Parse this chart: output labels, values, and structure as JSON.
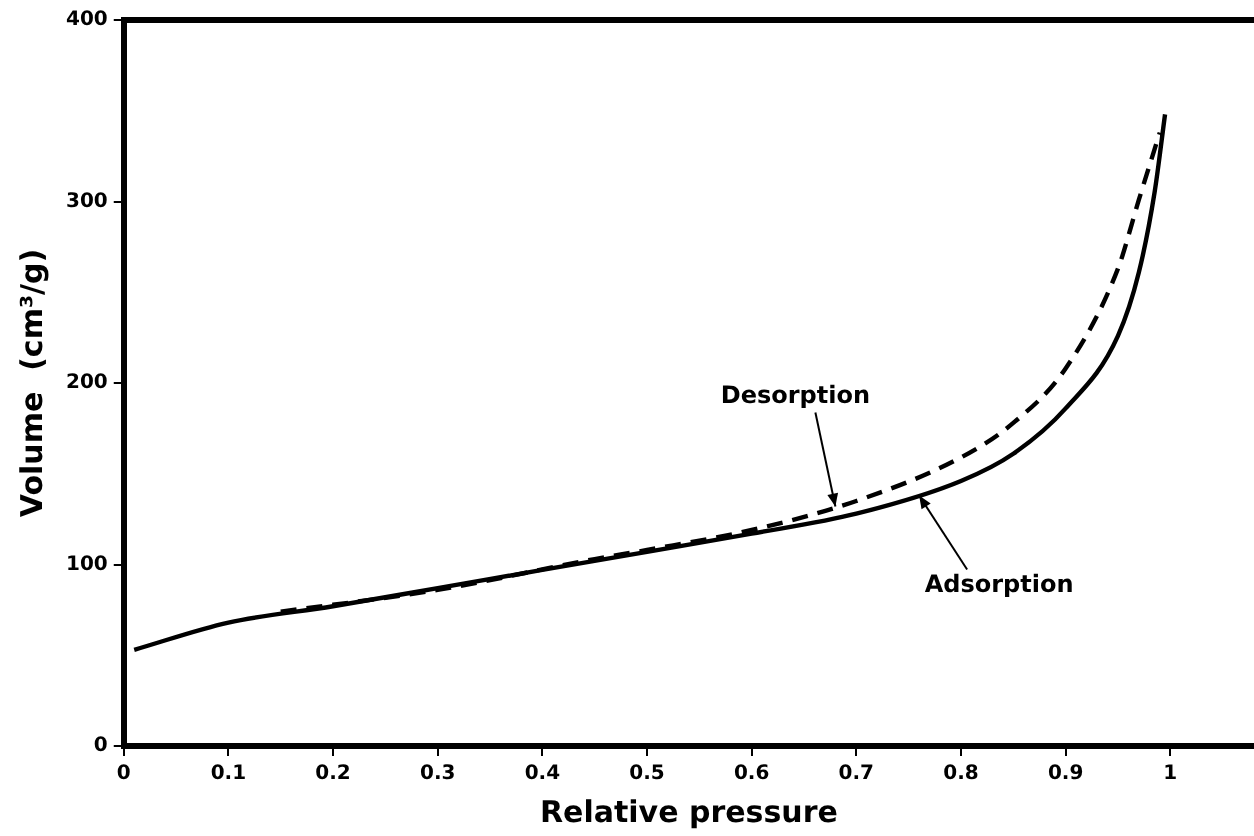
{
  "chart_data": {
    "type": "line",
    "xlabel": "Relative pressure",
    "ylabel": "Volume  (cm³/g)",
    "xlim": [
      0,
      1.08
    ],
    "xticks": [
      0,
      0.1,
      0.2,
      0.3,
      0.4,
      0.5,
      0.6,
      0.7,
      0.8,
      0.9,
      1
    ],
    "ylim": [
      0,
      400
    ],
    "yticks": [
      0,
      100,
      200,
      300,
      400
    ],
    "grid": false,
    "legend": false,
    "marker": "none",
    "series": [
      {
        "color": "#000000",
        "line_style": "solid",
        "x": [
          0.01,
          0.1,
          0.2,
          0.3,
          0.4,
          0.5,
          0.6,
          0.7,
          0.8,
          0.85,
          0.9,
          0.95,
          0.97,
          0.985,
          0.995
        ],
        "values": [
          53,
          68,
          77,
          87,
          97,
          107,
          117,
          128,
          146,
          161,
          186,
          226,
          261,
          305,
          348
        ]
      },
      {
        "color": "#000000",
        "line_style": "dashed",
        "x": [
          0.15,
          0.3,
          0.45,
          0.5,
          0.6,
          0.7,
          0.8,
          0.85,
          0.9,
          0.95,
          0.97,
          0.99
        ],
        "values": [
          74,
          86,
          103,
          108,
          119,
          135,
          159,
          178,
          208,
          263,
          301,
          338
        ]
      }
    ],
    "annotations": [
      {
        "text": "Desorption",
        "x": 0.68,
        "y": 132
      },
      {
        "text": "Adsorption",
        "x": 0.76,
        "y": 138
      }
    ]
  }
}
